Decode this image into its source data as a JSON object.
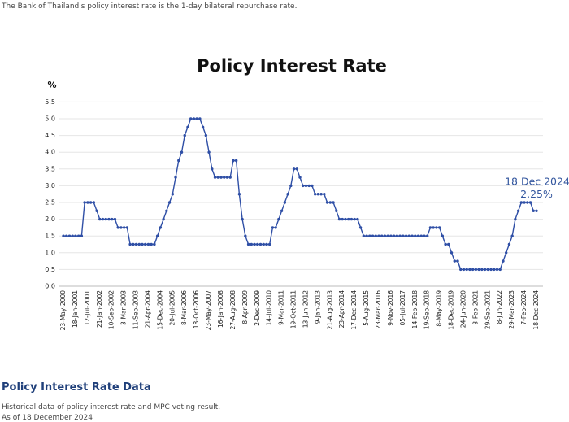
{
  "header": {
    "note": "The Bank of Thailand's policy interest rate is the 1-day bilateral repurchase rate."
  },
  "chart_data": {
    "type": "line",
    "title": "Policy Interest Rate",
    "y_label": "%",
    "categories": [
      "23-May-2000",
      null,
      null,
      null,
      "18-Jan-2001",
      null,
      null,
      null,
      "12-Jul-2001",
      null,
      null,
      null,
      "21-Jan-2002",
      null,
      null,
      null,
      "10-Sep-2002",
      null,
      null,
      null,
      "3-Mar-2003",
      null,
      null,
      null,
      "11-Sep-2003",
      null,
      null,
      null,
      "21-Apr-2004",
      null,
      null,
      null,
      "15-Dec-2004",
      null,
      null,
      null,
      "20-Jul-2005",
      null,
      null,
      null,
      "8-Mar-2006",
      null,
      null,
      null,
      "18-Oct-2006",
      null,
      null,
      null,
      "23-May-2007",
      null,
      null,
      null,
      "16-Jan-2008",
      null,
      null,
      null,
      "27-Aug-2008",
      null,
      null,
      null,
      "8-Apr-2009",
      null,
      null,
      null,
      "2-Dec-2009",
      null,
      null,
      null,
      "14-Jul-2010",
      null,
      null,
      null,
      "9-Mar-2011",
      null,
      null,
      null,
      "19-Oct-2011",
      null,
      null,
      null,
      "13-Jun-2012",
      null,
      null,
      null,
      "9-Jan-2013",
      null,
      null,
      null,
      "21-Aug-2013",
      null,
      null,
      null,
      "23-Apr-2014",
      null,
      null,
      null,
      "17-Dec-2014",
      null,
      null,
      null,
      "5-Aug-2015",
      null,
      null,
      null,
      "23-Mar-2016",
      null,
      null,
      null,
      "9-Nov-2016",
      null,
      null,
      null,
      "05-Jul-2017",
      null,
      null,
      null,
      "14-Feb-2018",
      null,
      null,
      null,
      "19-Sep-2018",
      null,
      null,
      null,
      "8-May-2019",
      null,
      null,
      null,
      "18-Dec-2019",
      null,
      null,
      null,
      "24-Jun-2020",
      null,
      null,
      null,
      "3-Feb-2021",
      null,
      null,
      null,
      "29-Sep-2021",
      null,
      null,
      null,
      "8-Jun-2022",
      null,
      null,
      null,
      "29-Mar-2023",
      null,
      null,
      null,
      "7-Feb-2024",
      null,
      null,
      null,
      "18-Dec-2024"
    ],
    "values": [
      1.5,
      1.5,
      1.5,
      1.5,
      1.5,
      1.5,
      1.5,
      2.5,
      2.5,
      2.5,
      2.5,
      2.25,
      2.0,
      2.0,
      2.0,
      2.0,
      2.0,
      2.0,
      1.75,
      1.75,
      1.75,
      1.75,
      1.25,
      1.25,
      1.25,
      1.25,
      1.25,
      1.25,
      1.25,
      1.25,
      1.25,
      1.5,
      1.75,
      2.0,
      2.25,
      2.5,
      2.75,
      3.25,
      3.75,
      4.0,
      4.5,
      4.75,
      5.0,
      5.0,
      5.0,
      5.0,
      4.75,
      4.5,
      4.0,
      3.5,
      3.25,
      3.25,
      3.25,
      3.25,
      3.25,
      3.25,
      3.75,
      3.75,
      2.75,
      2.0,
      1.5,
      1.25,
      1.25,
      1.25,
      1.25,
      1.25,
      1.25,
      1.25,
      1.25,
      1.75,
      1.75,
      2.0,
      2.25,
      2.5,
      2.75,
      3.0,
      3.5,
      3.5,
      3.25,
      3.0,
      3.0,
      3.0,
      3.0,
      2.75,
      2.75,
      2.75,
      2.75,
      2.5,
      2.5,
      2.5,
      2.25,
      2.0,
      2.0,
      2.0,
      2.0,
      2.0,
      2.0,
      2.0,
      1.75,
      1.5,
      1.5,
      1.5,
      1.5,
      1.5,
      1.5,
      1.5,
      1.5,
      1.5,
      1.5,
      1.5,
      1.5,
      1.5,
      1.5,
      1.5,
      1.5,
      1.5,
      1.5,
      1.5,
      1.5,
      1.5,
      1.5,
      1.75,
      1.75,
      1.75,
      1.75,
      1.5,
      1.25,
      1.25,
      1.0,
      0.75,
      0.75,
      0.5,
      0.5,
      0.5,
      0.5,
      0.5,
      0.5,
      0.5,
      0.5,
      0.5,
      0.5,
      0.5,
      0.5,
      0.5,
      0.5,
      0.75,
      1.0,
      1.25,
      1.5,
      2.0,
      2.25,
      2.5,
      2.5,
      2.5,
      2.5,
      2.25,
      2.25
    ],
    "value_labels": [
      null,
      null,
      null,
      null,
      null,
      null,
      null,
      null,
      null,
      null,
      null,
      null,
      null,
      null,
      null,
      null,
      null,
      null,
      null,
      null,
      null,
      null,
      null,
      null,
      null,
      null,
      null,
      null,
      null,
      null,
      null,
      null,
      null,
      null,
      null,
      null,
      null,
      null,
      null,
      null,
      null,
      null,
      null,
      null,
      null,
      null,
      null,
      null,
      null,
      null,
      null,
      null,
      null,
      null,
      null,
      null,
      null,
      null,
      null,
      null,
      null,
      null,
      null,
      null,
      null,
      null,
      null,
      null,
      null,
      null,
      null,
      null,
      null,
      null,
      null,
      null,
      null,
      null,
      null,
      null,
      null,
      null,
      null,
      null,
      null,
      null,
      null,
      null,
      null,
      null,
      null,
      null,
      null,
      null,
      null,
      null,
      null,
      null,
      null,
      null,
      null,
      null,
      null,
      null,
      null,
      null,
      null,
      null,
      null,
      null,
      null,
      null,
      null,
      null,
      null,
      null,
      null,
      null,
      null,
      null,
      null,
      null,
      null,
      null,
      null,
      null,
      null,
      null,
      null,
      null,
      null,
      null,
      null,
      null,
      null,
      null,
      null,
      null,
      null,
      null,
      null,
      null,
      null,
      null,
      null,
      null,
      null,
      null,
      null,
      null,
      null,
      null,
      null,
      null,
      null,
      null,
      "2.25%"
    ],
    "annotation": "18 Dec 2024",
    "color": "#2f4fa6",
    "ylim": [
      0,
      5.5
    ],
    "yticks": [
      {
        "value": 0,
        "label": "0.0"
      },
      0.5,
      {
        "value": 1,
        "label": "1.0"
      },
      1.5,
      {
        "value": 2,
        "label": "2.0"
      },
      2.5,
      {
        "value": 3,
        "label": "3.0"
      },
      3.5,
      {
        "value": 4,
        "label": "4.0"
      },
      4.5,
      {
        "value": 5,
        "label": "5.0"
      },
      5.5
    ],
    "grid": true
  },
  "section": {
    "title": "Policy Interest Rate Data",
    "description": "Historical data of policy interest rate and MPC voting result.",
    "as_of": "As of 18 December 2024"
  }
}
